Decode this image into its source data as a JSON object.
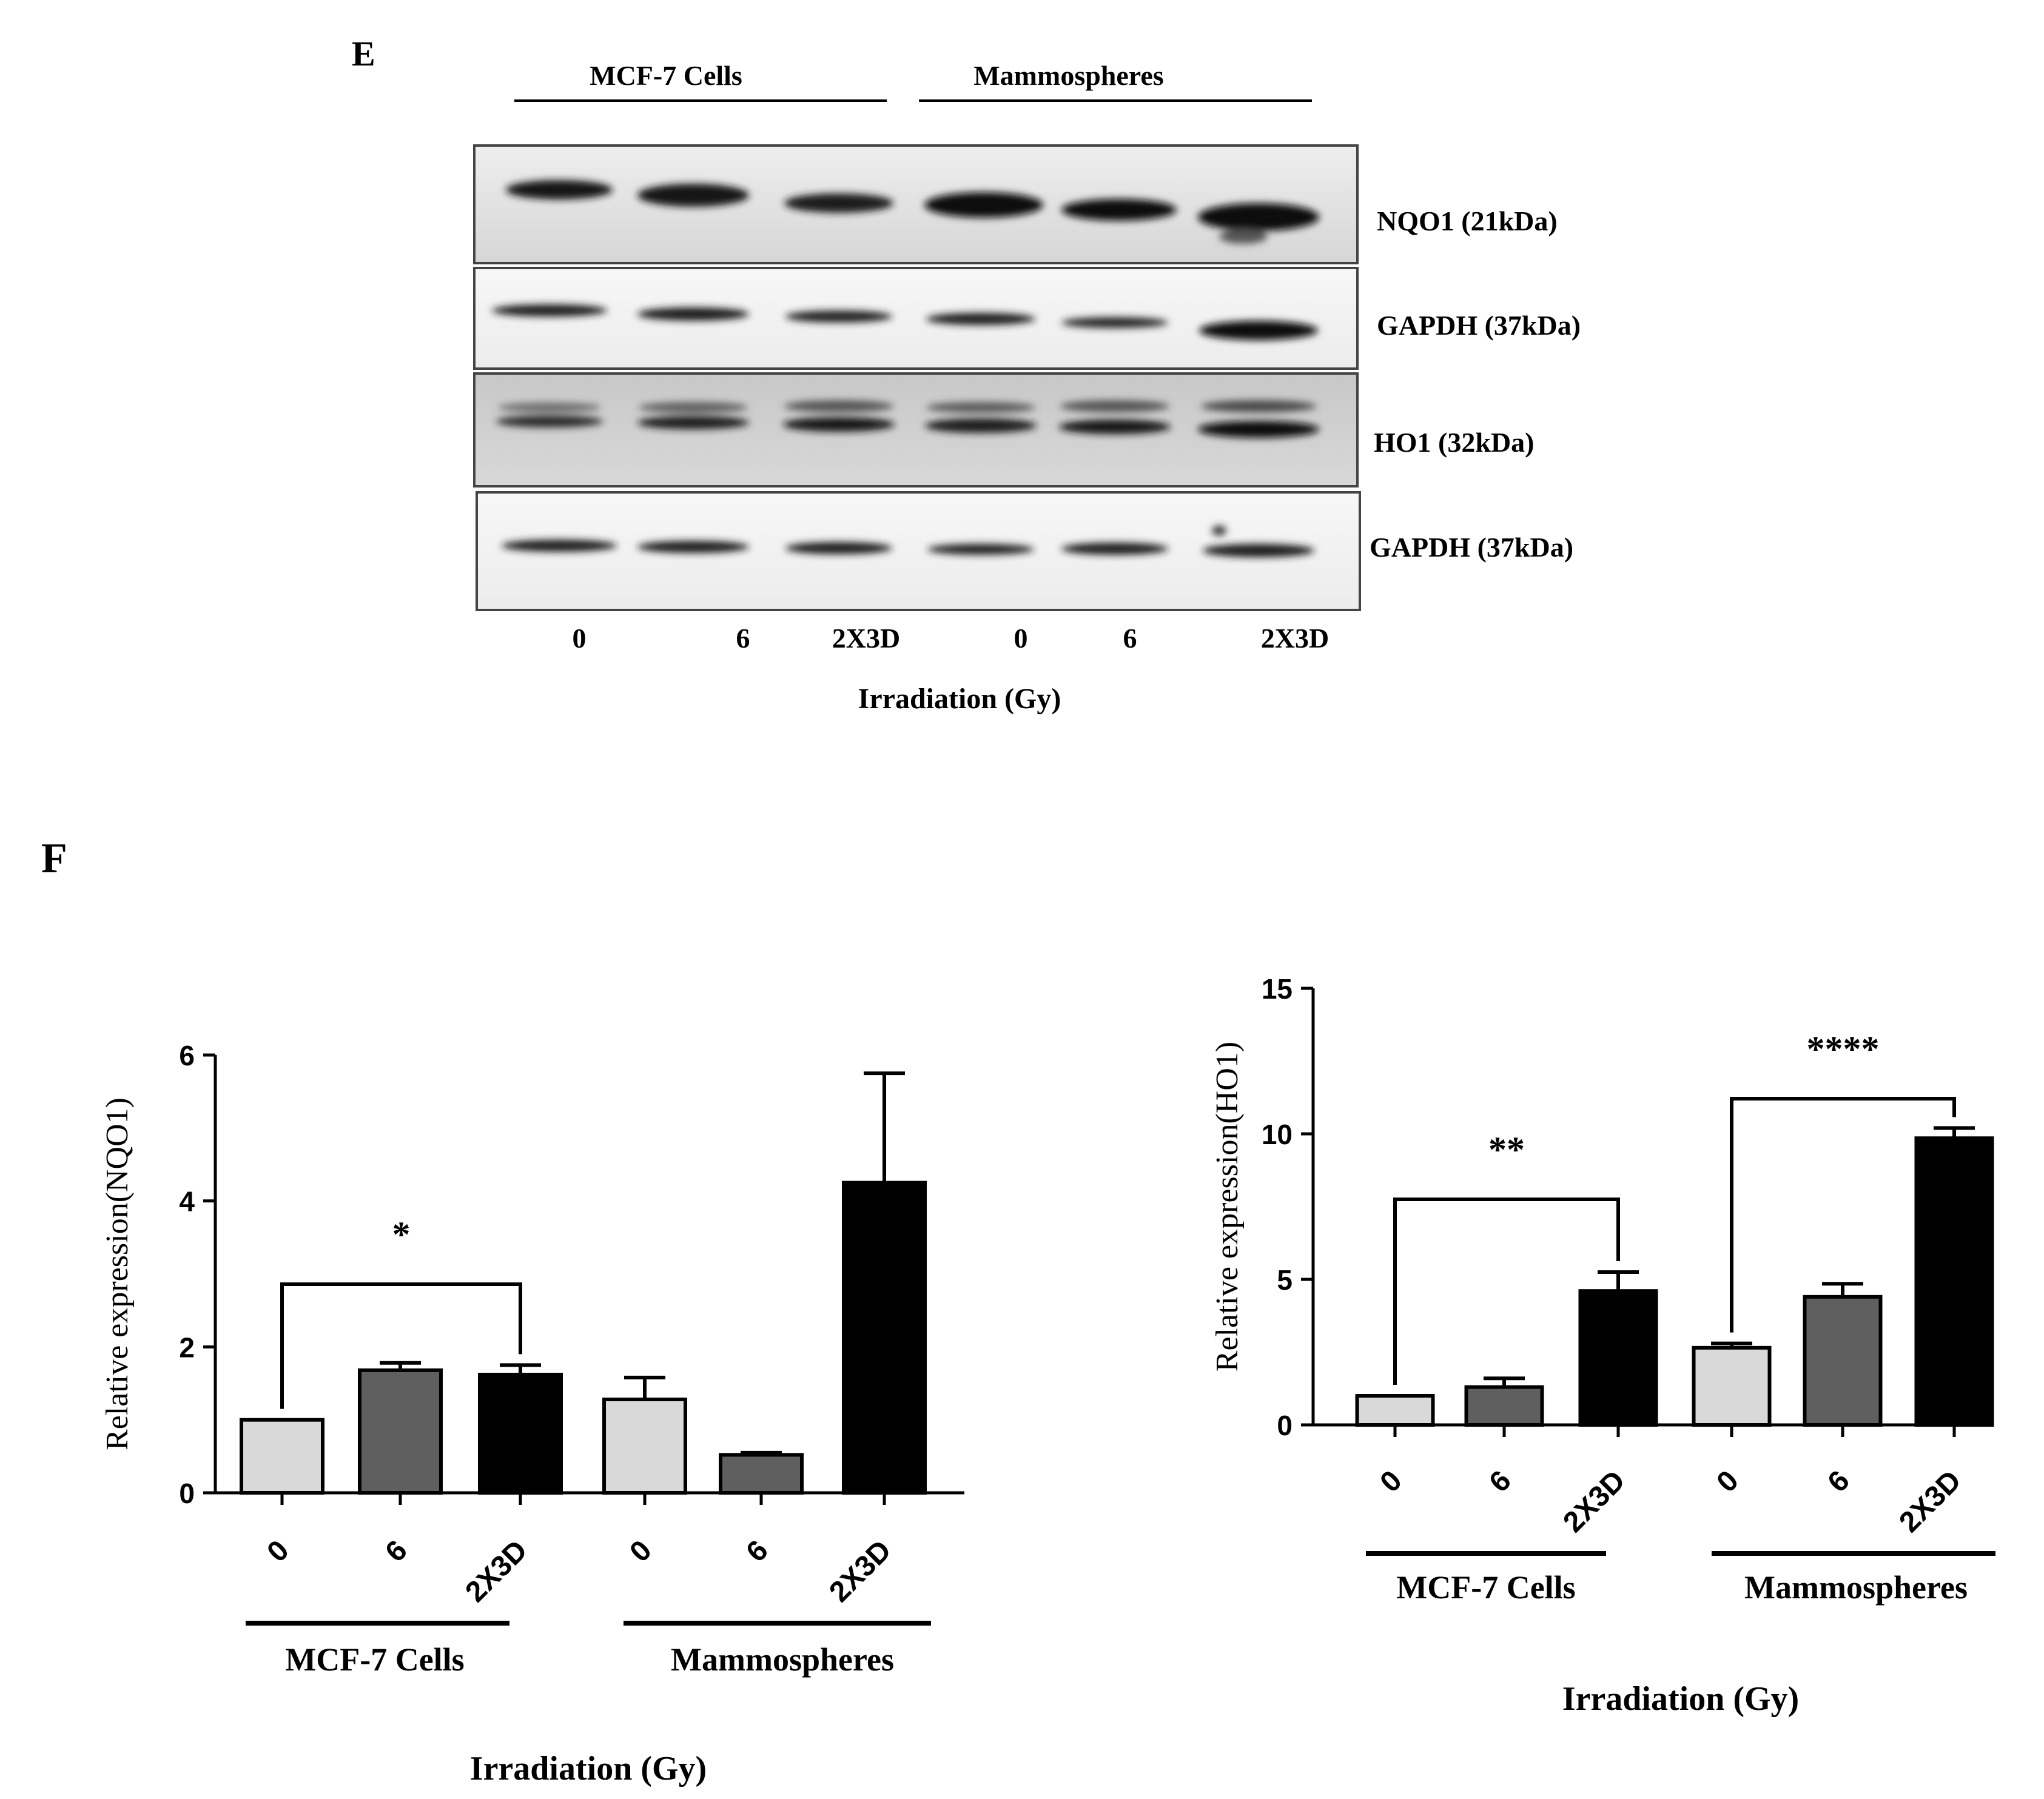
{
  "panel_e": {
    "panel_label": "E",
    "group_labels": [
      "MCF-7 Cells",
      "Mammospheres"
    ],
    "blots": [
      {
        "label": "NQO1 (21kDa)"
      },
      {
        "label": "GAPDH (37kDa)"
      },
      {
        "label": "HO1 (32kDa)"
      },
      {
        "label": "GAPDH (37kDa)"
      }
    ],
    "lane_labels": [
      "0",
      "6",
      "2X3D",
      "0",
      "6",
      "2X3D"
    ],
    "xlabel": "Irradiation (Gy)"
  },
  "panel_f": {
    "panel_label": "F"
  },
  "chart_data": [
    {
      "type": "bar",
      "categories": [
        "0",
        "6",
        "2X3D",
        "0",
        "6",
        "2X3D"
      ],
      "groups": [
        "MCF-7 Cells",
        "Mammospheres"
      ],
      "values": [
        1.0,
        1.68,
        1.62,
        1.28,
        0.52,
        4.25
      ],
      "errors": [
        0.0,
        0.1,
        0.13,
        0.3,
        0.03,
        1.5
      ],
      "bar_colors": [
        "#d9d9d9",
        "#5f5f5f",
        "#000000",
        "#d9d9d9",
        "#5f5f5f",
        "#000000"
      ],
      "ylabel": "Relative expression(NQO1)",
      "xlabel": "Irradiation (Gy)",
      "ylim": [
        0,
        6
      ],
      "yticks": [
        0,
        2,
        4,
        6
      ],
      "annotations": [
        {
          "from": 0,
          "to": 2,
          "text": "*"
        }
      ]
    },
    {
      "type": "bar",
      "categories": [
        "0",
        "6",
        "2X3D",
        "0",
        "6",
        "2X3D"
      ],
      "groups": [
        "MCF-7 Cells",
        "Mammospheres"
      ],
      "values": [
        1.0,
        1.3,
        4.6,
        2.65,
        4.4,
        9.85
      ],
      "errors": [
        0.0,
        0.3,
        0.65,
        0.15,
        0.45,
        0.35
      ],
      "bar_colors": [
        "#d9d9d9",
        "#5f5f5f",
        "#000000",
        "#d9d9d9",
        "#5f5f5f",
        "#000000"
      ],
      "ylabel": "Relative expression(HO1)",
      "xlabel": "Irradiation (Gy)",
      "ylim": [
        0,
        15
      ],
      "yticks": [
        0,
        5,
        10,
        15
      ],
      "annotations": [
        {
          "from": 0,
          "to": 2,
          "text": "**"
        },
        {
          "from": 3,
          "to": 5,
          "text": "****"
        }
      ]
    }
  ]
}
